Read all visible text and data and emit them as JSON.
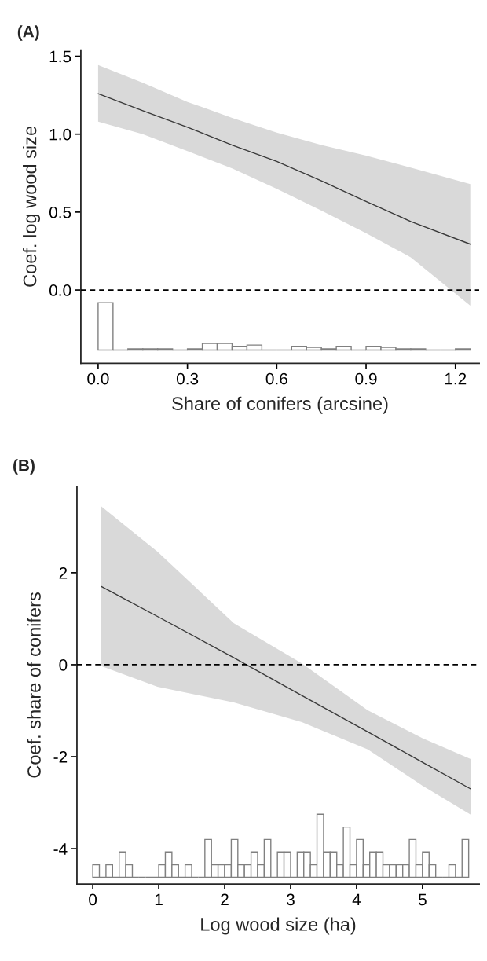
{
  "chart_data": [
    {
      "type": "line",
      "title": "(A)",
      "xlabel": "Share of conifers (arcsine)",
      "ylabel": "Coef. log wood size",
      "xlim": [
        -0.058,
        1.28
      ],
      "xticks": [
        {
          "value": 0,
          "label": "0.0"
        },
        0.3,
        0.6,
        0.9,
        1.2
      ],
      "ylim": [
        -0.47,
        1.54
      ],
      "yticks": [
        {
          "value": 0,
          "label": "0.0"
        },
        {
          "value": 0.5,
          "label": "0.5"
        },
        {
          "value": 1,
          "label": "1.0"
        },
        {
          "value": 1.5,
          "label": "1.5"
        }
      ],
      "grid": false,
      "legend": false,
      "ref_lines": [
        {
          "axis": "y",
          "value": 0,
          "color": "#000000",
          "line_style": "dashed"
        }
      ],
      "series": [
        {
          "color": "#3a3a3a",
          "x": [
            0,
            0.15,
            0.3,
            0.45,
            0.6,
            0.75,
            0.9,
            1.05,
            1.25
          ],
          "values": [
            1.26,
            1.15,
            1.045,
            0.93,
            0.825,
            0.7,
            0.568,
            0.44,
            0.294
          ],
          "lower": [
            1.08,
            1.0,
            0.892,
            0.78,
            0.649,
            0.51,
            0.365,
            0.21,
            -0.1
          ],
          "upper": [
            1.444,
            1.33,
            1.207,
            1.105,
            1.01,
            0.93,
            0.862,
            0.786,
            0.68
          ]
        },
        {
          "type": "histogram",
          "color": "#808080",
          "bins": [
            0,
            0.05,
            0.1,
            0.15,
            0.2,
            0.25,
            0.3,
            0.35,
            0.4,
            0.45,
            0.5,
            0.55,
            0.6,
            0.65,
            0.7,
            0.75,
            0.8,
            0.85,
            0.9,
            0.95,
            1.0,
            1.05,
            1.1,
            1.15,
            1.2,
            1.25
          ],
          "values": [
            0.304,
            0,
            0.007,
            0.007,
            0.007,
            0,
            0.007,
            0.042,
            0.042,
            0.024,
            0.032,
            0,
            0,
            0.024,
            0.017,
            0.007,
            0.024,
            0,
            0.024,
            0.017,
            0.007,
            0.007,
            0,
            0,
            0.007
          ],
          "base": [
            -0.385,
            -0.385,
            -0.385,
            -0.385,
            -0.385,
            -0.385,
            -0.385,
            -0.385,
            -0.385,
            -0.385,
            -0.385,
            -0.385,
            -0.385,
            -0.385,
            -0.385,
            -0.385,
            -0.385,
            -0.385,
            -0.385,
            -0.385,
            -0.385,
            -0.385,
            -0.385,
            -0.385,
            -0.385
          ]
        }
      ]
    },
    {
      "type": "line",
      "title": "(B)",
      "xlabel": "Log wood size (ha)",
      "ylabel": "Coef. share of conifers",
      "xlim": [
        -0.24,
        5.86
      ],
      "xticks": [
        0,
        1,
        2,
        3,
        4,
        5
      ],
      "ylim": [
        -4.77,
        3.88
      ],
      "yticks": [
        -4,
        -2,
        0,
        2
      ],
      "grid": false,
      "legend": false,
      "ref_lines": [
        {
          "axis": "y",
          "value": 0,
          "color": "#000000",
          "line_style": "dashed"
        }
      ],
      "series": [
        {
          "color": "#3a3a3a",
          "x": [
            0.13,
            0.98,
            2.14,
            3.17,
            4.17,
            5.0,
            5.73
          ],
          "values": [
            1.7,
            1.05,
            0.15,
            -0.67,
            -1.46,
            -2.12,
            -2.7
          ],
          "lower": [
            -0.03,
            -0.48,
            -0.82,
            -1.25,
            -1.84,
            -2.63,
            -3.26
          ],
          "upper": [
            3.44,
            2.46,
            0.9,
            0.03,
            -0.99,
            -1.6,
            -2.05
          ]
        },
        {
          "type": "histogram",
          "color": "#808080",
          "bins": [
            0,
            0.1,
            0.2,
            0.3,
            0.4,
            0.5,
            0.6,
            0.7,
            0.8,
            0.9,
            1.0,
            1.1,
            1.2,
            1.3,
            1.4,
            1.5,
            1.6,
            1.7,
            1.8,
            1.9,
            2.0,
            2.1,
            2.2,
            2.3,
            2.4,
            2.5,
            2.6,
            2.7,
            2.8,
            2.9,
            3.0,
            3.1,
            3.2,
            3.3,
            3.4,
            3.5,
            3.6,
            3.7,
            3.8,
            3.9,
            4.0,
            4.1,
            4.2,
            4.3,
            4.4,
            4.5,
            4.6,
            4.7,
            4.8,
            4.9,
            5.0,
            5.1,
            5.2,
            5.3,
            5.4,
            5.5,
            5.6,
            5.7
          ],
          "values": [
            0.27,
            0,
            0.27,
            0,
            0.55,
            0.27,
            0,
            0,
            0,
            0,
            0.27,
            0.55,
            0.27,
            0,
            0.27,
            0,
            0,
            0.82,
            0.27,
            0.27,
            0.27,
            0.82,
            0.27,
            0.27,
            0.55,
            0.27,
            0.82,
            0,
            0.55,
            0.55,
            0,
            0.55,
            0.55,
            0.27,
            1.37,
            0.55,
            0.55,
            0.27,
            1.09,
            0.27,
            0.82,
            0.27,
            0.55,
            0.55,
            0.27,
            0.27,
            0.27,
            0.27,
            0.82,
            0.27,
            0.55,
            0.27,
            0,
            0,
            0.27,
            0,
            0.82
          ],
          "base": [
            -4.62,
            -4.62,
            -4.62,
            -4.62,
            -4.62,
            -4.62,
            -4.62,
            -4.62,
            -4.62,
            -4.62,
            -4.62,
            -4.62,
            -4.62,
            -4.62,
            -4.62,
            -4.62,
            -4.62,
            -4.62,
            -4.62,
            -4.62,
            -4.62,
            -4.62,
            -4.62,
            -4.62,
            -4.62,
            -4.62,
            -4.62,
            -4.62,
            -4.62,
            -4.62,
            -4.62,
            -4.62,
            -4.62,
            -4.62,
            -4.62,
            -4.62,
            -4.62,
            -4.62,
            -4.62,
            -4.62,
            -4.62,
            -4.62,
            -4.62,
            -4.62,
            -4.62,
            -4.62,
            -4.62,
            -4.62,
            -4.62,
            -4.62,
            -4.62,
            -4.62,
            -4.62,
            -4.62,
            -4.62,
            -4.62,
            -4.62
          ]
        }
      ]
    }
  ]
}
